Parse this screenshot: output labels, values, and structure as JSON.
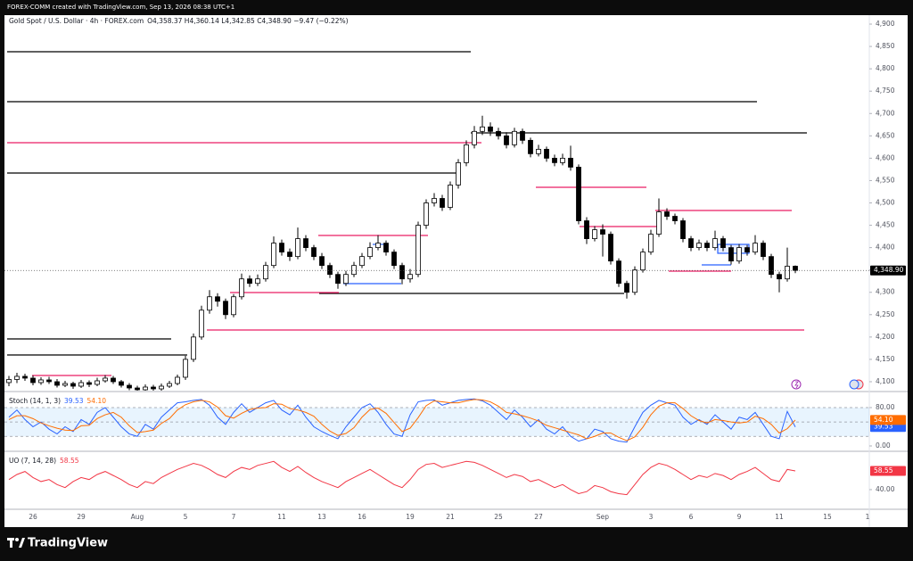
{
  "header": {
    "text": "FOREX-COMM created with TradingView.com, Sep 13, 2026 08:38 UTC+1"
  },
  "footer": {
    "brand": "TradingView"
  },
  "chart_data": [
    {
      "type": "candlestick",
      "title": "Gold Spot / U.S. Dollar · 4h · FOREX.com",
      "legend_values": "O4,358.37  H4,360.14  L4,342.85  C4,348.90  −9.47 (−0.22%)",
      "last_value_label": "4,348.90",
      "up_color": "#ffffff",
      "down_color": "#000000",
      "wick_color": "#000000",
      "ylim": [
        4080,
        4920
      ],
      "yticks": [
        {
          "value": 4100,
          "label": "4,100"
        },
        {
          "value": 4150,
          "label": "4,150"
        },
        {
          "value": 4200,
          "label": "4,200"
        },
        {
          "value": 4250,
          "label": "4,250"
        },
        {
          "value": 4300,
          "label": "4,300"
        },
        {
          "value": 4350,
          "label": "4,350"
        },
        {
          "value": 4400,
          "label": "4,400"
        },
        {
          "value": 4450,
          "label": "4,450"
        },
        {
          "value": 4500,
          "label": "4,500"
        },
        {
          "value": 4550,
          "label": "4,550"
        },
        {
          "value": 4600,
          "label": "4,600"
        },
        {
          "value": 4650,
          "label": "4,650"
        },
        {
          "value": 4700,
          "label": "4,700"
        },
        {
          "value": 4750,
          "label": "4,750"
        },
        {
          "value": 4800,
          "label": "4,800"
        },
        {
          "value": 4850,
          "label": "4,850"
        },
        {
          "value": 4900,
          "label": "4,900"
        }
      ],
      "grid": false,
      "categories": [
        null,
        null,
        null,
        "26",
        null,
        null,
        null,
        null,
        null,
        "29",
        null,
        null,
        null,
        null,
        null,
        null,
        "Aug",
        null,
        null,
        null,
        null,
        null,
        "5",
        null,
        null,
        null,
        null,
        null,
        "7",
        null,
        null,
        null,
        null,
        null,
        "11",
        null,
        null,
        null,
        null,
        "13",
        null,
        null,
        null,
        null,
        "16",
        null,
        null,
        null,
        null,
        null,
        "19",
        null,
        null,
        null,
        null,
        "21",
        null,
        null,
        null,
        null,
        null,
        "25",
        null,
        null,
        null,
        null,
        "27",
        null,
        null,
        null,
        null,
        null,
        null,
        null,
        "Sep",
        null,
        null,
        null,
        null,
        null,
        "3",
        null,
        null,
        null,
        null,
        "6",
        null,
        null,
        null,
        null,
        null,
        "9",
        null,
        null,
        null,
        null,
        "11",
        null,
        null,
        null,
        null,
        null,
        "15",
        null,
        null,
        null,
        null,
        "1"
      ],
      "open": [
        4098,
        4105,
        4112,
        4108,
        4098,
        4104,
        4100,
        4092,
        4096,
        4090,
        4098,
        4094,
        4102,
        4108,
        4100,
        4092,
        4086,
        4082,
        4088,
        4084,
        4090,
        4096,
        4110,
        4150,
        4200,
        4260,
        4290,
        4280,
        4250,
        4290,
        4330,
        4320,
        4330,
        4360,
        4410,
        4390,
        4380,
        4420,
        4400,
        4380,
        4360,
        4340,
        4320,
        4340,
        4360,
        4380,
        4400,
        4410,
        4390,
        4360,
        4330,
        4340,
        4450,
        4500,
        4510,
        4490,
        4540,
        4590,
        4630,
        4660,
        4670,
        4660,
        4650,
        4630,
        4660,
        4640,
        4610,
        4620,
        4600,
        4590,
        4600,
        4580,
        4460,
        4420,
        4440,
        4430,
        4370,
        4320,
        4300,
        4350,
        4390,
        4430,
        4480,
        4470,
        4460,
        4420,
        4400,
        4410,
        4400,
        4420,
        4400,
        4370,
        4400,
        4390,
        4410,
        4380,
        4340,
        4330,
        4358.37,
        null,
        null,
        null,
        null,
        null,
        null,
        null,
        null,
        null
      ],
      "high": [
        4113,
        4120,
        4118,
        4114,
        4110,
        4111,
        4106,
        4102,
        4100,
        4104,
        4103,
        4109,
        4115,
        4113,
        4104,
        4097,
        4091,
        4094,
        4093,
        4096,
        4102,
        4116,
        4158,
        4208,
        4270,
        4305,
        4298,
        4286,
        4296,
        4342,
        4338,
        4340,
        4368,
        4425,
        4418,
        4398,
        4445,
        4428,
        4406,
        4388,
        4366,
        4346,
        4348,
        4368,
        4388,
        4412,
        4428,
        4416,
        4396,
        4366,
        4352,
        4458,
        4508,
        4522,
        4518,
        4548,
        4598,
        4640,
        4672,
        4695,
        4680,
        4668,
        4658,
        4668,
        4666,
        4646,
        4630,
        4626,
        4608,
        4610,
        4628,
        4586,
        4468,
        4448,
        4452,
        4436,
        4376,
        4326,
        4358,
        4398,
        4440,
        4510,
        4488,
        4476,
        4466,
        4426,
        4418,
        4416,
        4438,
        4426,
        4406,
        4408,
        4406,
        4428,
        4416,
        4386,
        4346,
        4400,
        4360.14,
        null,
        null,
        null,
        null,
        null,
        null,
        null,
        null,
        null
      ],
      "low": [
        4090,
        4097,
        4102,
        4092,
        4093,
        4095,
        4087,
        4088,
        4084,
        4086,
        4088,
        4090,
        4098,
        4095,
        4087,
        4081,
        4078,
        4078,
        4079,
        4080,
        4086,
        4092,
        4104,
        4144,
        4194,
        4252,
        4268,
        4240,
        4244,
        4284,
        4312,
        4314,
        4324,
        4354,
        4382,
        4370,
        4374,
        4392,
        4372,
        4352,
        4332,
        4308,
        4314,
        4334,
        4354,
        4374,
        4394,
        4382,
        4352,
        4318,
        4322,
        4334,
        4442,
        4492,
        4482,
        4484,
        4532,
        4582,
        4622,
        4652,
        4650,
        4642,
        4622,
        4624,
        4632,
        4602,
        4604,
        4592,
        4582,
        4584,
        4572,
        4452,
        4408,
        4414,
        4380,
        4362,
        4312,
        4286,
        4294,
        4344,
        4384,
        4424,
        4462,
        4452,
        4412,
        4392,
        4394,
        4392,
        4394,
        4392,
        4362,
        4364,
        4382,
        4384,
        4372,
        4332,
        4300,
        4324,
        4342.85,
        null,
        null,
        null,
        null,
        null,
        null,
        null,
        null,
        null
      ],
      "close": [
        4105,
        4112,
        4108,
        4098,
        4104,
        4100,
        4092,
        4096,
        4090,
        4098,
        4094,
        4102,
        4108,
        4100,
        4092,
        4086,
        4082,
        4088,
        4084,
        4090,
        4096,
        4110,
        4150,
        4200,
        4260,
        4290,
        4280,
        4250,
        4290,
        4330,
        4320,
        4330,
        4360,
        4410,
        4390,
        4380,
        4420,
        4400,
        4380,
        4360,
        4340,
        4320,
        4340,
        4360,
        4380,
        4400,
        4410,
        4390,
        4360,
        4330,
        4340,
        4450,
        4500,
        4510,
        4490,
        4540,
        4590,
        4630,
        4660,
        4670,
        4660,
        4650,
        4630,
        4660,
        4640,
        4610,
        4620,
        4600,
        4590,
        4600,
        4580,
        4460,
        4420,
        4440,
        4430,
        4370,
        4320,
        4300,
        4350,
        4390,
        4430,
        4480,
        4470,
        4460,
        4420,
        4400,
        4410,
        4400,
        4420,
        4400,
        4370,
        4400,
        4390,
        4410,
        4380,
        4340,
        4330,
        4358.37,
        4348.9,
        null,
        null,
        null,
        null,
        null,
        null,
        null,
        null,
        null
      ]
    },
    {
      "type": "line",
      "title": "Stoch (14, 1, 3)",
      "ylim": [
        -9.3,
        111.6
      ],
      "yticks": [
        {
          "value": 80,
          "label": "80.00"
        },
        {
          "value": 0,
          "label": "0.00"
        }
      ],
      "levels": [
        80,
        50,
        20
      ],
      "band_color": "#2196f3",
      "series": [
        {
          "name": "%K",
          "color": "#2962ff",
          "last_label": "39.53",
          "values": [
            60,
            75,
            55,
            40,
            50,
            35,
            25,
            40,
            30,
            55,
            45,
            70,
            80,
            60,
            40,
            25,
            20,
            45,
            35,
            60,
            75,
            90,
            92,
            95,
            97,
            85,
            60,
            45,
            70,
            88,
            70,
            80,
            90,
            95,
            75,
            65,
            85,
            60,
            40,
            30,
            22,
            15,
            40,
            60,
            80,
            88,
            70,
            45,
            25,
            20,
            65,
            92,
            95,
            96,
            85,
            90,
            95,
            97,
            98,
            94,
            85,
            70,
            55,
            75,
            60,
            40,
            55,
            35,
            25,
            40,
            20,
            10,
            15,
            35,
            30,
            15,
            10,
            8,
            40,
            70,
            85,
            95,
            90,
            85,
            60,
            45,
            55,
            45,
            65,
            50,
            35,
            60,
            55,
            70,
            45,
            20,
            15,
            72,
            39.53
          ]
        },
        {
          "name": "%D",
          "color": "#ff6d00",
          "last_label": "54.10",
          "values": [
            55,
            63,
            63,
            57,
            48,
            42,
            37,
            33,
            32,
            42,
            43,
            57,
            65,
            70,
            60,
            42,
            28,
            30,
            33,
            47,
            57,
            75,
            86,
            92,
            95,
            92,
            81,
            63,
            58,
            68,
            76,
            79,
            80,
            88,
            87,
            78,
            75,
            70,
            62,
            45,
            31,
            22,
            26,
            38,
            60,
            76,
            79,
            68,
            49,
            30,
            37,
            59,
            84,
            94,
            92,
            90,
            90,
            94,
            97,
            96,
            92,
            83,
            70,
            67,
            63,
            58,
            52,
            43,
            38,
            33,
            28,
            23,
            15,
            20,
            27,
            27,
            18,
            11,
            19,
            39,
            65,
            83,
            90,
            90,
            78,
            63,
            53,
            48,
            55,
            53,
            50,
            48,
            50,
            62,
            57,
            45,
            27,
            36,
            54.1
          ]
        }
      ]
    },
    {
      "type": "line",
      "title": "UO (7, 14, 28)",
      "ylim": [
        21.4,
        77.1
      ],
      "yticks": [
        {
          "value": 40,
          "label": "40.00"
        }
      ],
      "series": [
        {
          "name": "UO",
          "color": "#f23645",
          "last_label": "58.55",
          "values": [
            50,
            55,
            58,
            52,
            48,
            50,
            45,
            42,
            48,
            52,
            50,
            55,
            58,
            54,
            50,
            45,
            42,
            48,
            46,
            52,
            56,
            60,
            63,
            66,
            64,
            60,
            55,
            52,
            58,
            62,
            60,
            64,
            66,
            68,
            62,
            58,
            63,
            57,
            52,
            48,
            45,
            42,
            48,
            52,
            56,
            60,
            55,
            50,
            45,
            42,
            50,
            60,
            65,
            66,
            62,
            64,
            66,
            68,
            67,
            64,
            60,
            56,
            52,
            55,
            53,
            48,
            50,
            46,
            42,
            45,
            40,
            36,
            38,
            44,
            42,
            38,
            36,
            35,
            45,
            55,
            62,
            66,
            64,
            60,
            55,
            50,
            54,
            52,
            56,
            54,
            50,
            55,
            58,
            62,
            56,
            50,
            48,
            60,
            58.55
          ]
        }
      ]
    }
  ]
}
